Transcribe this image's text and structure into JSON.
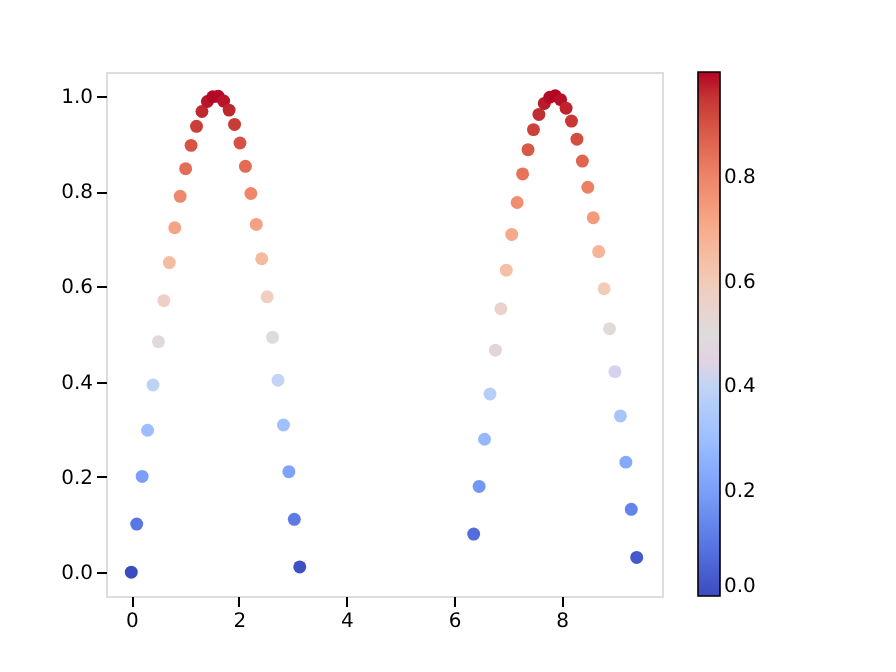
{
  "chart_data": {
    "type": "scatter",
    "marker": "circle",
    "x": [
      0,
      0.101,
      0.202,
      0.303,
      0.404,
      0.505,
      0.606,
      0.707,
      0.808,
      0.909,
      1.01,
      1.111,
      1.212,
      1.313,
      1.414,
      1.515,
      1.616,
      1.717,
      1.818,
      1.919,
      2.02,
      2.121,
      2.222,
      2.323,
      2.424,
      2.525,
      2.626,
      2.727,
      2.828,
      2.929,
      3.03,
      3.131,
      6.364,
      6.465,
      6.566,
      6.667,
      6.768,
      6.869,
      6.97,
      7.071,
      7.172,
      7.273,
      7.374,
      7.475,
      7.576,
      7.677,
      7.778,
      7.879,
      7.98,
      8.081,
      8.182,
      8.283,
      8.384,
      8.485,
      8.586,
      8.687,
      8.788,
      8.889,
      8.99,
      9.091,
      9.192,
      9.293,
      9.394
    ],
    "values": [
      0,
      0.101,
      0.201,
      0.298,
      0.393,
      0.484,
      0.57,
      0.65,
      0.723,
      0.789,
      0.847,
      0.896,
      0.936,
      0.967,
      0.988,
      0.998,
      0.999,
      0.989,
      0.97,
      0.94,
      0.901,
      0.852,
      0.795,
      0.73,
      0.658,
      0.578,
      0.493,
      0.403,
      0.309,
      0.211,
      0.111,
      0.011,
      0.08,
      0.18,
      0.279,
      0.374,
      0.466,
      0.553,
      0.634,
      0.709,
      0.776,
      0.836,
      0.887,
      0.929,
      0.961,
      0.984,
      0.997,
      1.0,
      0.992,
      0.974,
      0.947,
      0.909,
      0.863,
      0.808,
      0.744,
      0.673,
      0.595,
      0.511,
      0.421,
      0.328,
      0.231,
      0.132,
      0.031
    ],
    "cvalues": [
      0,
      0.101,
      0.201,
      0.298,
      0.393,
      0.484,
      0.57,
      0.65,
      0.723,
      0.789,
      0.847,
      0.896,
      0.936,
      0.967,
      0.988,
      0.998,
      0.999,
      0.989,
      0.97,
      0.94,
      0.901,
      0.852,
      0.795,
      0.73,
      0.658,
      0.578,
      0.493,
      0.403,
      0.309,
      0.211,
      0.111,
      0.011,
      0.08,
      0.18,
      0.279,
      0.374,
      0.466,
      0.553,
      0.634,
      0.709,
      0.776,
      0.836,
      0.887,
      0.929,
      0.961,
      0.984,
      0.997,
      1.0,
      0.992,
      0.974,
      0.947,
      0.909,
      0.863,
      0.808,
      0.744,
      0.673,
      0.595,
      0.511,
      0.421,
      0.328,
      0.231,
      0.132,
      0.031
    ],
    "xlim": [
      -0.47,
      9.864
    ],
    "ylim": [
      -0.05,
      1.05
    ],
    "xticks": [
      0,
      2,
      4,
      6,
      8
    ],
    "yticks": [
      {
        "value": 0,
        "label": "0.0"
      },
      {
        "value": 0.2,
        "label": "0.2"
      },
      {
        "value": 0.4,
        "label": "0.4"
      },
      {
        "value": 0.6,
        "label": "0.6"
      },
      {
        "value": 0.8,
        "label": "0.8"
      },
      {
        "value": 1,
        "label": "1.0"
      }
    ],
    "clim": [
      0,
      1.0
    ],
    "cticks": [
      {
        "value": 0,
        "label": "0.0"
      },
      {
        "value": 0.2,
        "label": "0.2"
      },
      {
        "value": 0.4,
        "label": "0.4"
      },
      {
        "value": 0.6,
        "label": "0.6"
      },
      {
        "value": 0.8,
        "label": "0.8"
      }
    ],
    "grid": false
  }
}
